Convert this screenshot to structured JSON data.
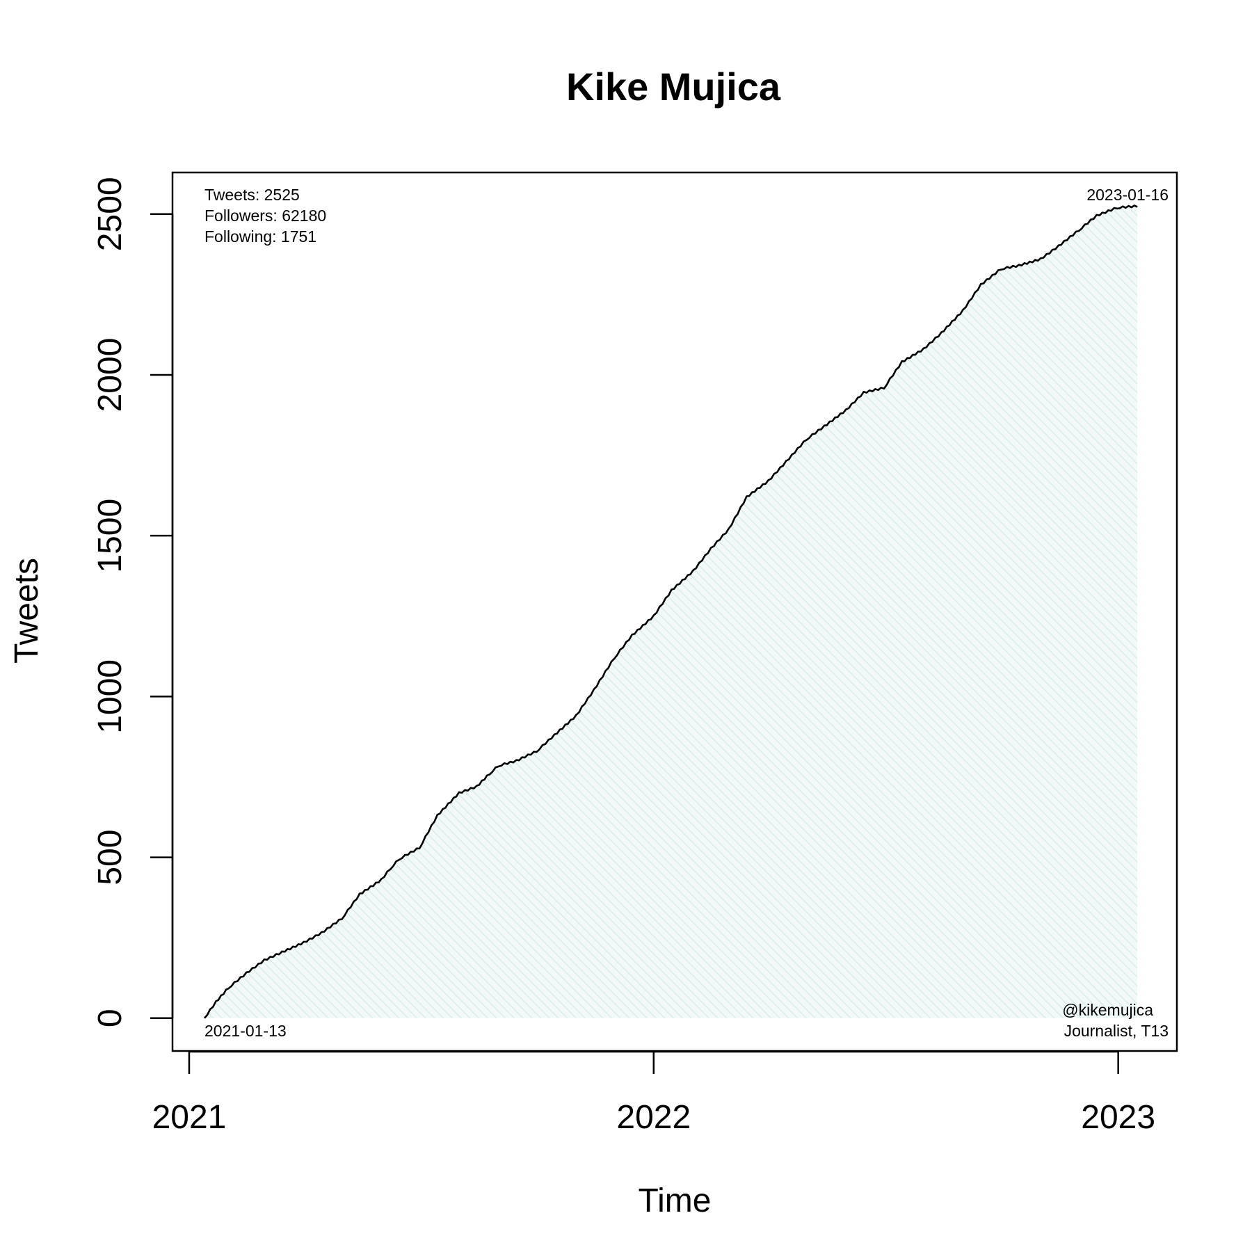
{
  "chart_data": {
    "type": "area",
    "title": "Kike Mujica",
    "xlabel": "Time",
    "ylabel": "Tweets",
    "x_range": [
      "2020-12-20",
      "2023-02-15"
    ],
    "ylim": [
      -100,
      2625
    ],
    "x_ticks": [
      {
        "date": "2021-01-01",
        "label": "2021"
      },
      {
        "date": "2022-01-01",
        "label": "2022"
      },
      {
        "date": "2023-01-01",
        "label": "2023"
      }
    ],
    "y_ticks": [
      0,
      500,
      1000,
      1500,
      2000,
      2500
    ],
    "grid": false,
    "line_color": "#000000",
    "fill_color": "#e6f2f2",
    "stats": {
      "tweets": "Tweets: 2525",
      "followers": "Followers: 62180",
      "following": "Following: 1751"
    },
    "start_label": "2021-01-13",
    "end_label": "2023-01-16",
    "handle": "@kikemujica",
    "bio": "Journalist, T13",
    "series": {
      "x": [
        "2021-01-13",
        "2021-01-22",
        "2021-02-01",
        "2021-02-15",
        "2021-03-01",
        "2021-03-15",
        "2021-04-01",
        "2021-04-15",
        "2021-05-01",
        "2021-05-15",
        "2021-06-01",
        "2021-06-08",
        "2021-06-15",
        "2021-07-01",
        "2021-07-15",
        "2021-08-01",
        "2021-08-15",
        "2021-08-25",
        "2021-09-01",
        "2021-09-15",
        "2021-10-01",
        "2021-10-15",
        "2021-11-01",
        "2021-11-15",
        "2021-12-01",
        "2021-12-15",
        "2022-01-01",
        "2022-01-15",
        "2022-02-01",
        "2022-02-15",
        "2022-03-01",
        "2022-03-15",
        "2022-04-01",
        "2022-04-15",
        "2022-05-01",
        "2022-05-15",
        "2022-06-01",
        "2022-06-15",
        "2022-07-01",
        "2022-07-15",
        "2022-08-01",
        "2022-08-15",
        "2022-09-01",
        "2022-09-15",
        "2022-10-01",
        "2022-10-15",
        "2022-11-01",
        "2022-11-15",
        "2022-12-01",
        "2022-12-15",
        "2022-12-31",
        "2023-01-16"
      ],
      "y": [
        0,
        50,
        95,
        140,
        180,
        205,
        235,
        265,
        310,
        385,
        430,
        465,
        495,
        530,
        630,
        700,
        720,
        760,
        785,
        800,
        830,
        880,
        940,
        1020,
        1120,
        1190,
        1250,
        1330,
        1390,
        1460,
        1520,
        1620,
        1670,
        1730,
        1800,
        1840,
        1890,
        1945,
        1960,
        2040,
        2080,
        2130,
        2200,
        2280,
        2330,
        2340,
        2360,
        2400,
        2450,
        2495,
        2520,
        2525
      ]
    }
  }
}
